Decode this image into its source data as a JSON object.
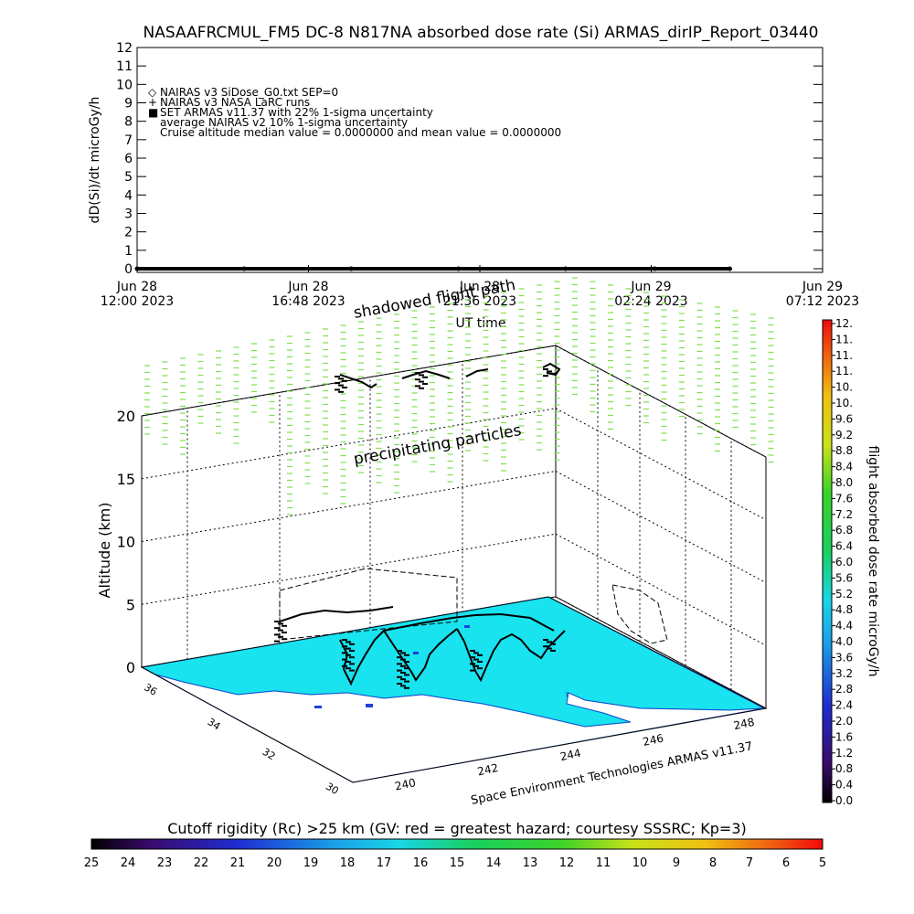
{
  "title": "NASAAFRCMUL_FM5 DC-8   N817NA absorbed dose rate (Si) ARMAS_dirIP_Report_03440",
  "chart_data": [
    {
      "type": "line",
      "ylabel": "dD(Si)/dt microGy/h",
      "xlabel": "UT time",
      "ylim": [
        0,
        12
      ],
      "y_ticks": [
        "0",
        "1",
        "2",
        "3",
        "4",
        "5",
        "6",
        "7",
        "8",
        "9",
        "10",
        "11",
        "12"
      ],
      "x_ticks": [
        {
          "line1": "Jun 28",
          "line2": "12:00 2023"
        },
        {
          "line1": "Jun 28",
          "line2": "16:48 2023"
        },
        {
          "line1": "Jun 28",
          "line2": "21:36 2023"
        },
        {
          "line1": "Jun 29",
          "line2": "02:24 2023"
        },
        {
          "line1": "Jun 29",
          "line2": "07:12 2023"
        }
      ],
      "legend": [
        {
          "symbol": "◇",
          "text": "NAIRAS v3 SiDose_G0.txt SEP=0"
        },
        {
          "symbol": "+",
          "text": "NAIRAS v3 NASA LaRC runs"
        },
        {
          "symbol": "■",
          "text": "SET ARMAS v11.37 with 22% 1-sigma uncertainty",
          "color": "#1f3fd8"
        },
        {
          "symbol": "",
          "text": "average NAIRAS v2 10% 1-sigma uncertainty"
        },
        {
          "symbol": "",
          "text": "Cruise altitude median value = 0.0000000 and mean value = 0.0000000"
        }
      ],
      "series": [
        {
          "x_hours": [
            0,
            3,
            6,
            9,
            12,
            14.5,
            16.6
          ],
          "values": [
            0,
            0,
            0,
            0,
            0,
            0,
            0
          ]
        }
      ]
    },
    {
      "type": "scatter",
      "zlabel": "Altitude (km)",
      "z_ticks": [
        "0",
        "5",
        "10",
        "15",
        "20"
      ],
      "lon_ticks": [
        "240",
        "242",
        "244",
        "246",
        "248"
      ],
      "lat_ticks": [
        "30",
        "32",
        "34",
        "36"
      ],
      "annotations": [
        "shadowed flight path",
        "precipitating particles"
      ],
      "credit": "Space Environment Technologies ARMAS v11.37"
    },
    {
      "type": "heatmap",
      "label": "flight absorbed dose rate microGy/h",
      "ticks": [
        "0.0",
        "0.4",
        "0.8",
        "1.2",
        "1.6",
        "2.0",
        "2.4",
        "2.8",
        "3.2",
        "3.6",
        "4.0",
        "4.4",
        "4.8",
        "5.2",
        "5.6",
        "6.0",
        "6.4",
        "6.8",
        "7.2",
        "7.6",
        "8.0",
        "8.4",
        "8.8",
        "9.2",
        "9.6",
        "10.",
        "10.",
        "11.",
        "11.",
        "11.",
        "12."
      ]
    },
    {
      "type": "heatmap",
      "label": "Cutoff rigidity (Rc) >25 km (GV: red = greatest hazard; courtesy SSSRC; Kp=3)",
      "ticks": [
        "25",
        "24",
        "23",
        "22",
        "21",
        "20",
        "19",
        "18",
        "17",
        "16",
        "15",
        "14",
        "13",
        "12",
        "11",
        "10",
        "9",
        "8",
        "7",
        "6",
        "5"
      ]
    }
  ],
  "colors": {
    "land": "#19e3ee",
    "precipitation": "#7ee04a",
    "flight_path": "#000000",
    "armas_marker": "#1f3fd8"
  }
}
